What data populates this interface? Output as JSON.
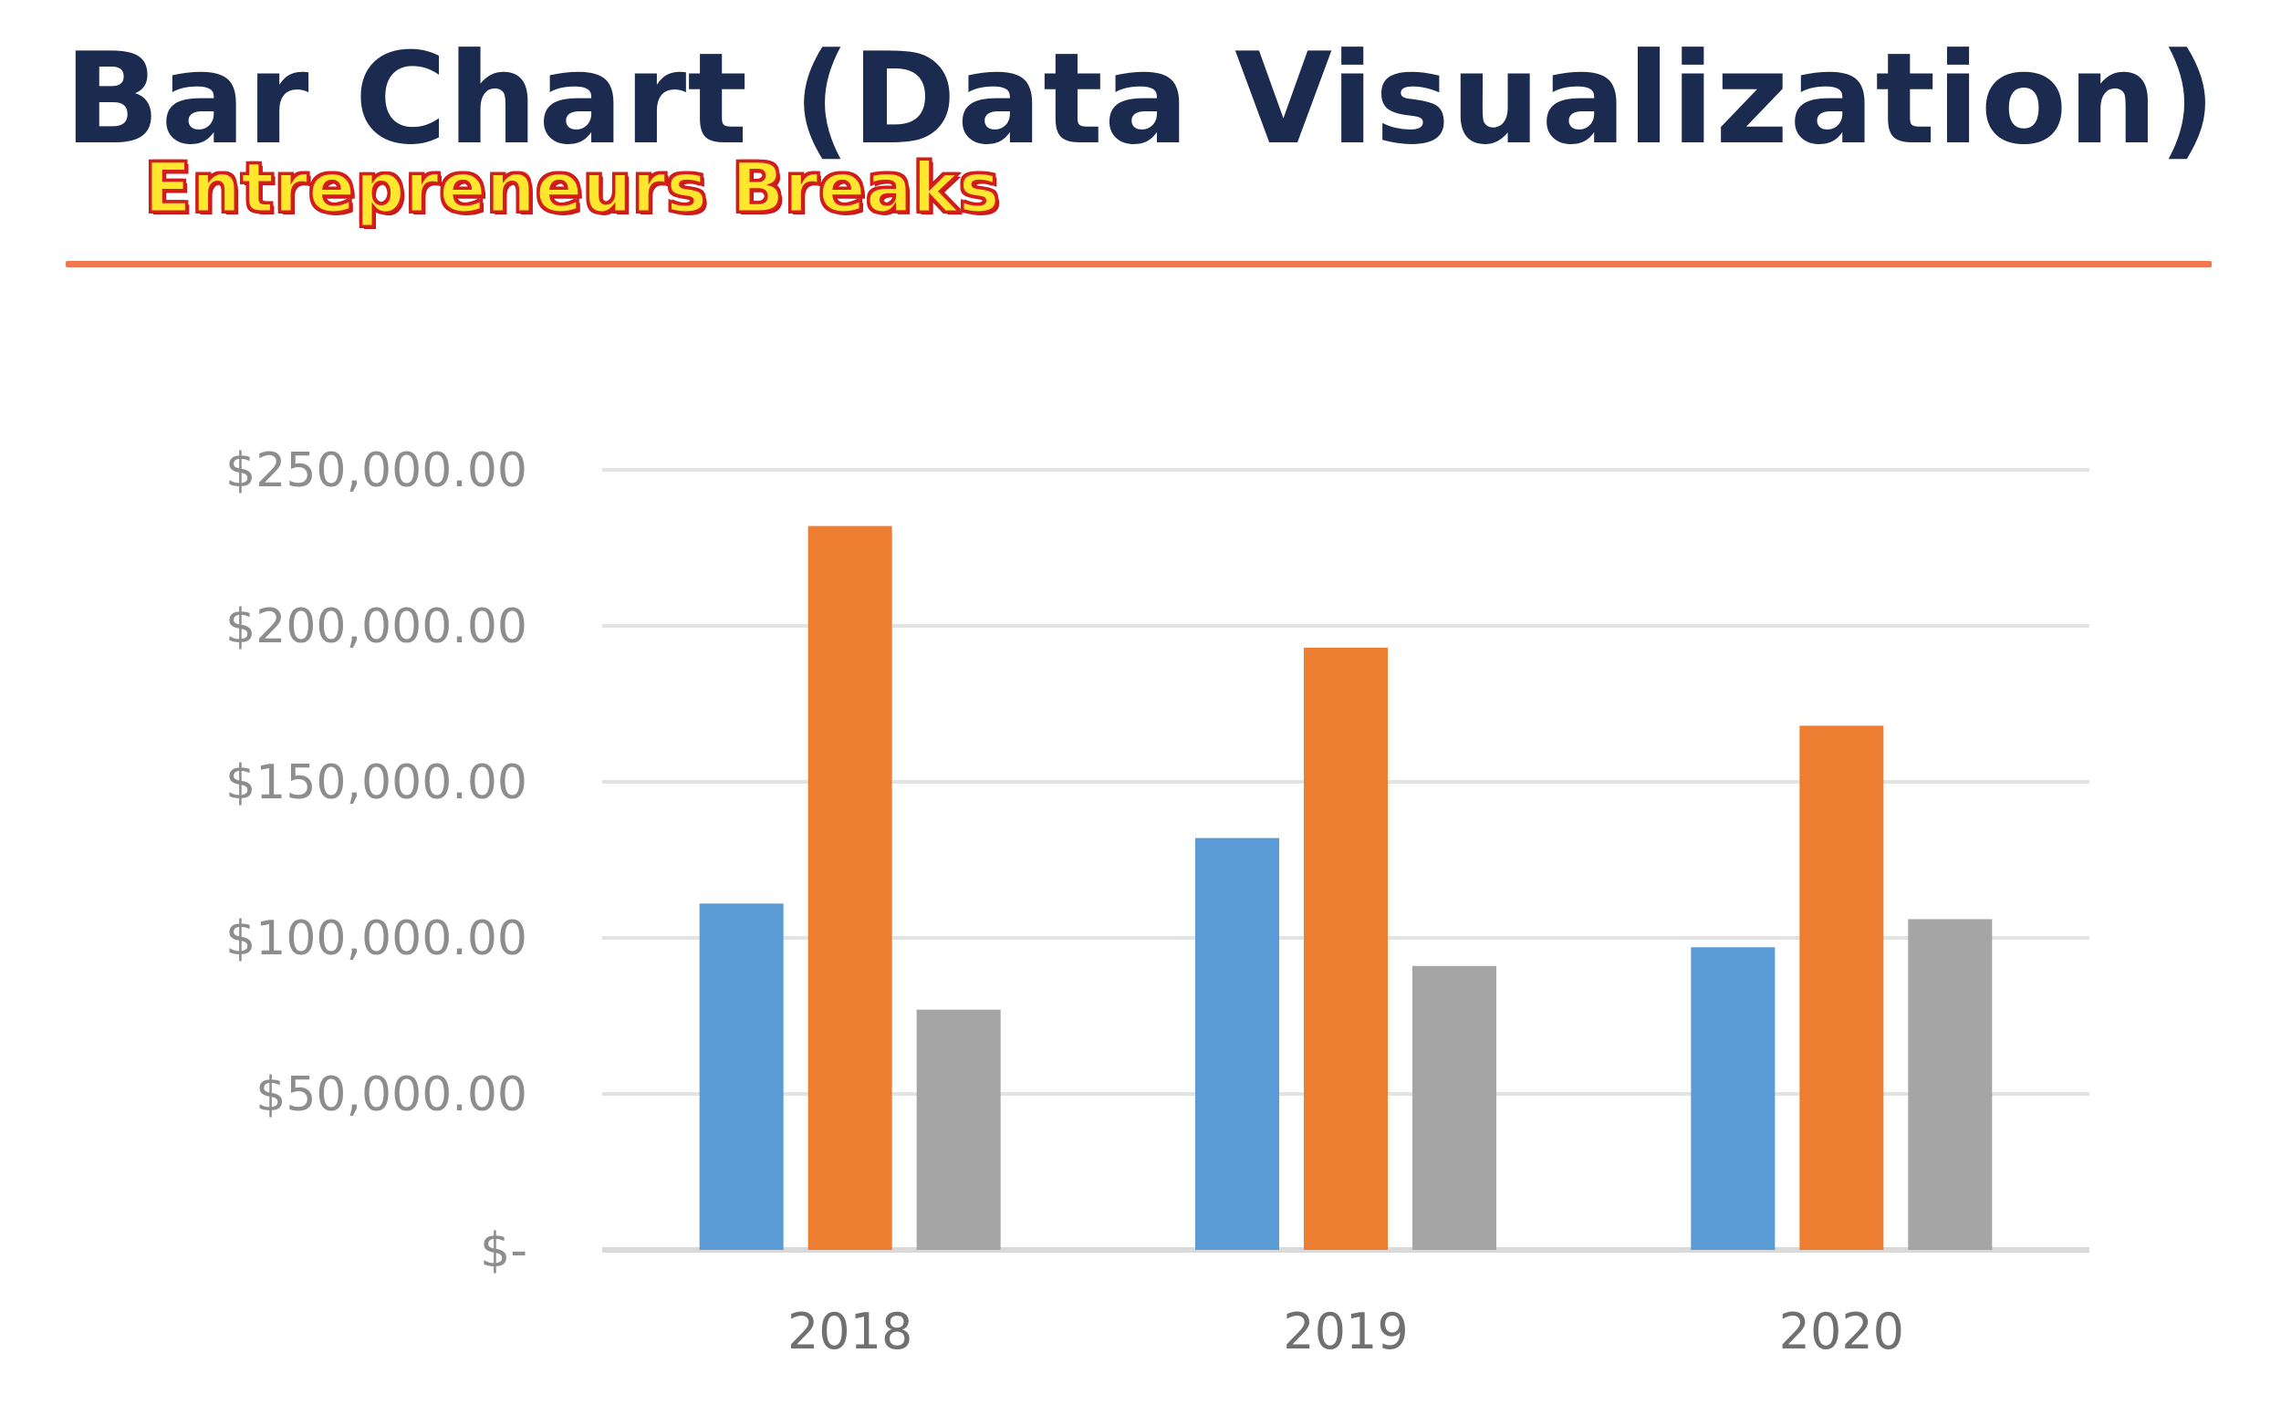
{
  "header": {
    "title": "Bar Chart (Data Visualization)",
    "watermark": "Entrepreneurs Breaks",
    "rule_color": "#f2764f"
  },
  "chart_data": {
    "type": "bar",
    "title": "",
    "xlabel": "",
    "ylabel": "",
    "categories": [
      "2018",
      "2019",
      "2020"
    ],
    "ylim": [
      0,
      250000
    ],
    "y_ticks": [
      0,
      50000,
      100000,
      150000,
      200000,
      250000
    ],
    "y_tick_labels": [
      "$-",
      "$50,000.00",
      "$100,000.00",
      "$150,000.00",
      "$200,000.00",
      "$250,000.00"
    ],
    "grid": true,
    "legend": "none",
    "series": [
      {
        "color": "#5b9bd5",
        "values": [
          111000,
          132000,
          97000
        ]
      },
      {
        "color": "#ed7d31",
        "values": [
          232000,
          193000,
          168000
        ]
      },
      {
        "color": "#a5a5a5",
        "values": [
          77000,
          91000,
          106000
        ]
      }
    ]
  }
}
